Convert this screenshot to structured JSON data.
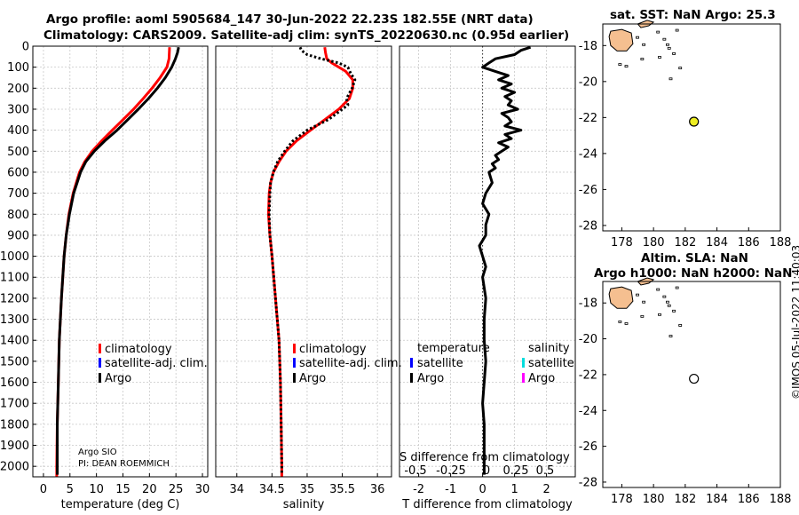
{
  "header": {
    "line1": "Argo profile: aoml 5905684_147 30-Jun-2022 22.23S 182.55E (NRT data)",
    "line2": "Climatology: CARS2009. Satellite-adj clim: synTS_20220630.nc (0.95d earlier)"
  },
  "stamp": "©IMOS 05-Jul-2022 11:40:03",
  "credit": {
    "line1": "Argo SIO",
    "line2": "PI: DEAN ROEMMICH"
  },
  "colors": {
    "climatology": "#ff0000",
    "satellite": "#0000ff",
    "argo": "#000000",
    "sat_salinity": "#00dddd",
    "argo_salinity": "#ff00ff",
    "land": "#f5bf90",
    "float_marker": "#eeee22"
  },
  "legend_temp": [
    "climatology",
    "satellite-adj. clim.",
    "Argo"
  ],
  "legend_sal": [
    "climatology",
    "satellite-adj. clim.",
    "Argo"
  ],
  "legend_diff": {
    "head_temp": "temperature",
    "head_sal": "salinity",
    "temp_items": [
      "satellite",
      "Argo"
    ],
    "sal_items": [
      "satellite",
      "Argo"
    ],
    "inner_label": "S difference from climatology",
    "inner_ticks": [
      "-0.5",
      "-0.25",
      "0",
      "0.25",
      "0.5"
    ]
  },
  "chart_data": [
    {
      "type": "line",
      "xlabel": "temperature (deg C)",
      "ylabel": "",
      "xlim": [
        -2,
        31
      ],
      "ylim": [
        2050,
        0
      ],
      "xticks": [
        0,
        5,
        10,
        15,
        20,
        25,
        30
      ],
      "yticks": [
        0,
        100,
        200,
        300,
        400,
        500,
        600,
        700,
        800,
        900,
        1000,
        1100,
        1200,
        1300,
        1400,
        1500,
        1600,
        1700,
        1800,
        1900,
        2000
      ],
      "series": [
        {
          "name": "climatology",
          "depth": [
            5,
            60,
            100,
            150,
            200,
            250,
            300,
            350,
            400,
            450,
            500,
            550,
            600,
            700,
            800,
            900,
            1000,
            1200,
            1400,
            1600,
            1800,
            2000,
            2050
          ],
          "values": [
            23.8,
            23.7,
            23.3,
            22.0,
            20.5,
            18.8,
            17.0,
            15.0,
            13.0,
            11.0,
            9.2,
            7.8,
            6.8,
            5.6,
            4.8,
            4.3,
            3.9,
            3.4,
            3.0,
            2.8,
            2.6,
            2.5,
            2.5
          ]
        },
        {
          "name": "Argo",
          "depth": [
            5,
            30,
            60,
            100,
            150,
            200,
            250,
            300,
            350,
            400,
            450,
            500,
            550,
            600,
            700,
            800,
            900,
            1000,
            1200,
            1400,
            1600,
            1800,
            2000,
            2040
          ],
          "values": [
            25.5,
            25.3,
            24.9,
            24.2,
            23.0,
            21.5,
            19.8,
            17.9,
            15.9,
            13.9,
            11.6,
            9.6,
            8.0,
            7.0,
            5.7,
            4.9,
            4.3,
            3.9,
            3.4,
            3.0,
            2.8,
            2.6,
            2.6,
            2.6
          ]
        }
      ]
    },
    {
      "type": "line",
      "xlabel": "salinity",
      "xlim": [
        33.7,
        36.2
      ],
      "ylim": [
        2050,
        0
      ],
      "xticks": [
        34,
        34.5,
        35,
        35.5,
        36
      ],
      "series": [
        {
          "name": "climatology",
          "depth": [
            5,
            30,
            60,
            80,
            120,
            160,
            200,
            250,
            300,
            350,
            400,
            450,
            500,
            550,
            600,
            650,
            700,
            800,
            900,
            1000,
            1200,
            1400,
            1600,
            1800,
            2000,
            2050
          ],
          "values": [
            35.25,
            35.26,
            35.28,
            35.35,
            35.55,
            35.65,
            35.65,
            35.6,
            35.45,
            35.25,
            35.05,
            34.85,
            34.7,
            34.6,
            34.52,
            34.48,
            34.46,
            34.45,
            34.47,
            34.5,
            34.55,
            34.6,
            34.62,
            34.63,
            34.64,
            34.64
          ]
        },
        {
          "name": "Argo",
          "depth": [
            5,
            20,
            40,
            60,
            80,
            100,
            130,
            160,
            200,
            250,
            280,
            300,
            350,
            400,
            450,
            500,
            550,
            600,
            650,
            700,
            800,
            900,
            1000,
            1200,
            1400,
            1600,
            1800,
            2000,
            2040
          ],
          "values": [
            34.9,
            34.92,
            35.0,
            35.2,
            35.45,
            35.58,
            35.62,
            35.68,
            35.64,
            35.56,
            35.58,
            35.5,
            35.3,
            35.0,
            34.8,
            34.68,
            34.58,
            34.52,
            34.48,
            34.47,
            34.46,
            34.47,
            34.5,
            34.55,
            34.6,
            34.62,
            34.63,
            34.64,
            34.64
          ]
        }
      ]
    },
    {
      "type": "line",
      "xlabel": "T difference from climatology",
      "xlim": [
        -2.6,
        2.9
      ],
      "ylim": [
        2050,
        0
      ],
      "xticks": [
        -2,
        -1,
        0,
        1,
        2
      ],
      "series": [
        {
          "name": "Argo",
          "depth": [
            5,
            20,
            40,
            60,
            80,
            100,
            120,
            140,
            160,
            180,
            200,
            220,
            240,
            260,
            280,
            300,
            320,
            340,
            360,
            380,
            400,
            420,
            440,
            460,
            480,
            500,
            520,
            540,
            560,
            580,
            600,
            650,
            700,
            750,
            800,
            850,
            900,
            950,
            1000,
            1050,
            1100,
            1200,
            1300,
            1400,
            1500,
            1600,
            1700,
            1800,
            1900,
            2000,
            2040
          ],
          "values": [
            1.5,
            1.2,
            1.0,
            0.4,
            0.2,
            0.0,
            0.4,
            0.8,
            0.5,
            0.9,
            0.6,
            1.0,
            0.7,
            0.9,
            0.8,
            1.1,
            0.6,
            0.8,
            0.9,
            0.7,
            1.2,
            0.7,
            0.9,
            0.5,
            0.8,
            0.6,
            0.4,
            0.5,
            0.3,
            0.4,
            0.2,
            0.3,
            0.1,
            0.0,
            0.2,
            0.1,
            0.1,
            -0.1,
            0.0,
            0.1,
            0.0,
            0.1,
            0.05,
            0.05,
            0.1,
            0.05,
            0.0,
            0.05,
            0.05,
            0.05,
            0.05
          ]
        }
      ]
    },
    {
      "type": "scatter",
      "title": "sat. SST: NaN Argo: 25.3",
      "xlim": [
        176.8,
        188
      ],
      "ylim": [
        -28.3,
        -16.8
      ],
      "xticks": [
        178,
        180,
        182,
        184,
        186,
        188
      ],
      "yticks": [
        -18,
        -20,
        -22,
        -24,
        -26,
        -28
      ],
      "points": [
        {
          "lon": 182.55,
          "lat": -22.23,
          "label": "float"
        }
      ]
    },
    {
      "type": "scatter",
      "title_line1": "Altim. SLA: NaN",
      "title_line2": "Argo h1000: NaN h2000: NaN",
      "xlim": [
        176.8,
        188
      ],
      "ylim": [
        -28.3,
        -16.8
      ],
      "xticks": [
        178,
        180,
        182,
        184,
        186,
        188
      ],
      "yticks": [
        -18,
        -20,
        -22,
        -24,
        -26,
        -28
      ],
      "points": [
        {
          "lon": 182.55,
          "lat": -22.23,
          "label": "float"
        }
      ]
    }
  ]
}
